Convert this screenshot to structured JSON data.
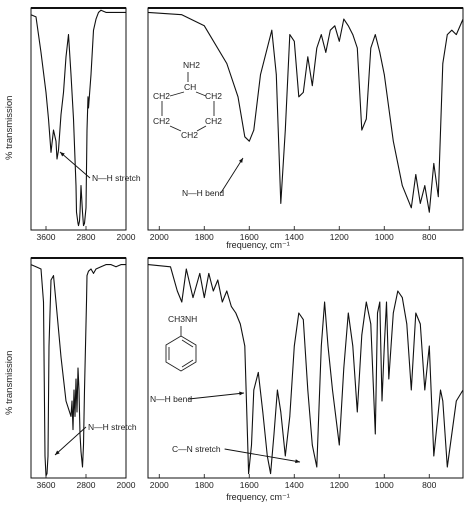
{
  "chart_data": [
    {
      "type": "line",
      "title": "",
      "ylabel": "% transmission",
      "xlabel": "frequency, cm⁻¹",
      "molecule": {
        "label": "NH2",
        "ring_labels": [
          "CH2",
          "CH2",
          "CH2",
          "CH2",
          "CH2"
        ]
      },
      "panels": [
        {
          "id": "top-left",
          "xlim": [
            3900,
            2000
          ],
          "xticks": [
            3600,
            2800,
            2000
          ],
          "x": [
            3900,
            3800,
            3700,
            3600,
            3550,
            3500,
            3450,
            3400,
            3380,
            3350,
            3300,
            3250,
            3200,
            3150,
            3100,
            3050,
            3000,
            2990,
            2960,
            2950,
            2930,
            2920,
            2900,
            2870,
            2850,
            2830,
            2800,
            2780,
            2760,
            2750,
            2700,
            2650,
            2600,
            2550,
            2500,
            2400,
            2300,
            2200,
            2100,
            2000
          ],
          "y": [
            97,
            96,
            80,
            62,
            50,
            35,
            45,
            40,
            32,
            36,
            52,
            62,
            78,
            88,
            70,
            50,
            20,
            8,
            3,
            2,
            4,
            8,
            20,
            8,
            2,
            3,
            10,
            45,
            60,
            55,
            70,
            90,
            95,
            98,
            99,
            98,
            98,
            98,
            98,
            98
          ],
          "annotations": [
            {
              "text": "N—H stretch",
              "x": 3400
            }
          ]
        },
        {
          "id": "top-right",
          "xlim": [
            2050,
            650
          ],
          "xticks": [
            2000,
            1800,
            1600,
            1400,
            1200,
            1000,
            800
          ],
          "x": [
            2050,
            1900,
            1800,
            1700,
            1650,
            1620,
            1600,
            1580,
            1550,
            1500,
            1480,
            1460,
            1440,
            1420,
            1400,
            1380,
            1360,
            1340,
            1320,
            1300,
            1280,
            1260,
            1240,
            1220,
            1200,
            1180,
            1160,
            1140,
            1120,
            1100,
            1080,
            1060,
            1040,
            1020,
            1000,
            980,
            960,
            940,
            920,
            900,
            880,
            860,
            840,
            820,
            800,
            780,
            760,
            740,
            720,
            700,
            680,
            650
          ],
          "y": [
            98,
            97,
            92,
            75,
            60,
            42,
            40,
            45,
            70,
            90,
            70,
            12,
            45,
            88,
            85,
            60,
            62,
            78,
            65,
            82,
            88,
            80,
            90,
            92,
            85,
            95,
            92,
            88,
            82,
            45,
            50,
            82,
            88,
            80,
            70,
            55,
            40,
            30,
            20,
            15,
            10,
            25,
            12,
            20,
            8,
            30,
            15,
            75,
            88,
            90,
            88,
            95
          ],
          "annotations": [
            {
              "text": "N—H bend",
              "x": 1600
            }
          ]
        }
      ]
    },
    {
      "type": "line",
      "title": "",
      "ylabel": "% transmission",
      "xlabel": "frequency, cm⁻¹",
      "molecule": {
        "label": "CH3NH"
      },
      "panels": [
        {
          "id": "bottom-left",
          "xlim": [
            3900,
            2000
          ],
          "xticks": [
            3600,
            2800,
            2000
          ],
          "x": [
            3900,
            3800,
            3700,
            3650,
            3620,
            3600,
            3580,
            3560,
            3540,
            3500,
            3450,
            3400,
            3300,
            3200,
            3100,
            3080,
            3060,
            3040,
            3020,
            3000,
            2980,
            2960,
            2940,
            2920,
            2900,
            2870,
            2850,
            2830,
            2810,
            2790,
            2780,
            2750,
            2700,
            2650,
            2600,
            2500,
            2400,
            2300,
            2200,
            2100,
            2000
          ],
          "y": [
            97,
            96,
            95,
            80,
            10,
            1,
            2,
            10,
            60,
            90,
            92,
            80,
            55,
            35,
            28,
            35,
            22,
            40,
            28,
            45,
            30,
            50,
            40,
            20,
            12,
            5,
            15,
            40,
            60,
            80,
            92,
            94,
            95,
            93,
            95,
            96,
            97,
            97,
            96,
            97,
            97
          ],
          "annotations": [
            {
              "text": "N—H stretch",
              "x": 3400
            }
          ]
        },
        {
          "id": "bottom-right",
          "xlim": [
            2050,
            650
          ],
          "xticks": [
            2000,
            1800,
            1600,
            1400,
            1200,
            1000,
            800
          ],
          "x": [
            2050,
            1950,
            1920,
            1900,
            1880,
            1850,
            1820,
            1800,
            1780,
            1760,
            1740,
            1720,
            1700,
            1680,
            1660,
            1640,
            1620,
            1603,
            1590,
            1580,
            1560,
            1540,
            1520,
            1505,
            1490,
            1475,
            1460,
            1440,
            1420,
            1400,
            1380,
            1360,
            1340,
            1320,
            1300,
            1280,
            1265,
            1250,
            1230,
            1200,
            1180,
            1160,
            1140,
            1120,
            1100,
            1080,
            1060,
            1040,
            1030,
            1020,
            1010,
            1000,
            990,
            980,
            960,
            940,
            920,
            900,
            880,
            860,
            840,
            820,
            800,
            780,
            760,
            750,
            740,
            720,
            700,
            680,
            650
          ],
          "y": [
            97,
            96,
            85,
            80,
            95,
            82,
            93,
            82,
            93,
            85,
            90,
            80,
            85,
            78,
            75,
            70,
            60,
            2,
            15,
            40,
            48,
            30,
            10,
            2,
            20,
            40,
            30,
            10,
            28,
            60,
            75,
            72,
            40,
            15,
            5,
            60,
            80,
            60,
            40,
            15,
            50,
            75,
            60,
            30,
            65,
            80,
            70,
            20,
            75,
            80,
            35,
            60,
            80,
            45,
            75,
            85,
            82,
            70,
            40,
            75,
            70,
            40,
            60,
            10,
            30,
            40,
            35,
            5,
            20,
            35,
            40
          ],
          "annotations": [
            {
              "text": "N—H bend",
              "x": 1603
            },
            {
              "text": "C—N stretch",
              "x": 1320
            }
          ]
        }
      ]
    }
  ]
}
